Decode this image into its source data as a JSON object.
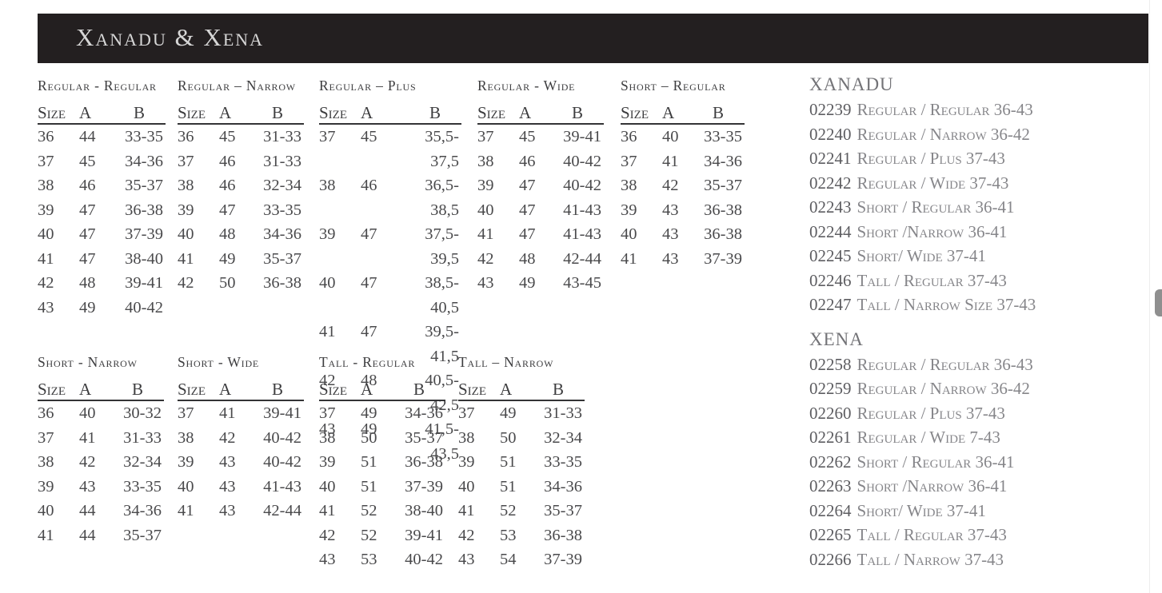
{
  "header": {
    "title": "Xanadu & Xena"
  },
  "colors": {
    "header_bg": "#231f20",
    "header_fg": "#d6d6d6",
    "title": "#3d3d3f",
    "text": "#4a4a4c",
    "rule": "#343436",
    "heading": "#737377",
    "code": "#5d5d61",
    "desc": "#86868a",
    "scrollbar": "#8f8f8f",
    "page_edge": "#ededed"
  },
  "table_columns": [
    "Size",
    "A",
    "B"
  ],
  "size_tables": [
    {
      "title": "Regular - Regular",
      "rows": [
        [
          "36",
          "44",
          "33-35"
        ],
        [
          "37",
          "45",
          "34-36"
        ],
        [
          "38",
          "46",
          "35-37"
        ],
        [
          "39",
          "47",
          "36-38"
        ],
        [
          "40",
          "47",
          "37-39"
        ],
        [
          "41",
          "47",
          "38-40"
        ],
        [
          "42",
          "48",
          "39-41"
        ],
        [
          "43",
          "49",
          "40-42"
        ]
      ]
    },
    {
      "title": "Regular – Narrow",
      "rows": [
        [
          "36",
          "45",
          "31-33"
        ],
        [
          "37",
          "46",
          "31-33"
        ],
        [
          "38",
          "46",
          "32-34"
        ],
        [
          "39",
          "47",
          "33-35"
        ],
        [
          "40",
          "48",
          "34-36"
        ],
        [
          "41",
          "49",
          "35-37"
        ],
        [
          "42",
          "50",
          "36-38"
        ]
      ]
    },
    {
      "title": "Regular – Plus",
      "rows": [
        [
          "37",
          "45",
          "35,5-37,5"
        ],
        [
          "38",
          "46",
          "36,5-38,5"
        ],
        [
          "39",
          "47",
          "37,5-39,5"
        ],
        [
          "40",
          "47",
          "38,5-40,5"
        ],
        [
          "41",
          "47",
          "39,5-41,5"
        ],
        [
          "42",
          "48",
          "40,5-42,5"
        ],
        [
          "43",
          "49",
          "41,5-43,5"
        ]
      ]
    },
    {
      "title": "Regular - Wide",
      "rows": [
        [
          "37",
          "45",
          "39-41"
        ],
        [
          "38",
          "46",
          "40-42"
        ],
        [
          "39",
          "47",
          "40-42"
        ],
        [
          "40",
          "47",
          "41-43"
        ],
        [
          "41",
          "47",
          "41-43"
        ],
        [
          "42",
          "48",
          "42-44"
        ],
        [
          "43",
          "49",
          "43-45"
        ]
      ]
    },
    {
      "title": "Short – Regular",
      "rows": [
        [
          "36",
          "40",
          "33-35"
        ],
        [
          "37",
          "41",
          "34-36"
        ],
        [
          "38",
          "42",
          "35-37"
        ],
        [
          "39",
          "43",
          "36-38"
        ],
        [
          "40",
          "43",
          "36-38"
        ],
        [
          "41",
          "43",
          "37-39"
        ]
      ]
    },
    {
      "title": "Short - Narrow",
      "rows": [
        [
          "36",
          "40",
          "30-32"
        ],
        [
          "37",
          "41",
          "31-33"
        ],
        [
          "38",
          "42",
          "32-34"
        ],
        [
          "39",
          "43",
          "33-35"
        ],
        [
          "40",
          "44",
          "34-36"
        ],
        [
          "41",
          "44",
          "35-37"
        ]
      ]
    },
    {
      "title": "Short - Wide",
      "rows": [
        [
          "37",
          "41",
          "39-41"
        ],
        [
          "38",
          "42",
          "40-42"
        ],
        [
          "39",
          "43",
          "40-42"
        ],
        [
          "40",
          "43",
          "41-43"
        ],
        [
          "41",
          "43",
          "42-44"
        ]
      ]
    },
    {
      "title": "Tall - Regular",
      "rows": [
        [
          "37",
          "49",
          "34-36"
        ],
        [
          "38",
          "50",
          "35-37"
        ],
        [
          "39",
          "51",
          "36-38"
        ],
        [
          "40",
          "51",
          "37-39"
        ],
        [
          "41",
          "52",
          "38-40"
        ],
        [
          "42",
          "52",
          "39-41"
        ],
        [
          "43",
          "53",
          "40-42"
        ]
      ]
    },
    {
      "title": "Tall – Narrow",
      "rows": [
        [
          "37",
          "49",
          "31-33"
        ],
        [
          "38",
          "50",
          "32-34"
        ],
        [
          "39",
          "51",
          "33-35"
        ],
        [
          "40",
          "51",
          "34-36"
        ],
        [
          "41",
          "52",
          "35-37"
        ],
        [
          "42",
          "53",
          "36-38"
        ],
        [
          "43",
          "54",
          "37-39"
        ]
      ]
    }
  ],
  "products": {
    "sections": [
      {
        "name": "XANADU",
        "items": [
          {
            "code": "02239",
            "desc": "Regular / Regular 36-43"
          },
          {
            "code": "02240",
            "desc": "Regular / Narrow 36-42"
          },
          {
            "code": "02241",
            "desc": "Regular / Plus 37-43"
          },
          {
            "code": "02242",
            "desc": "Regular / Wide 37-43"
          },
          {
            "code": "02243",
            "desc": "Short / Regular 36-41"
          },
          {
            "code": "02244",
            "desc": "Short /Narrow 36-41"
          },
          {
            "code": "02245",
            "desc": "Short/ Wide 37-41"
          },
          {
            "code": "02246",
            "desc": "Tall / Regular 37-43"
          },
          {
            "code": "02247",
            "desc": "Tall / Narrow Size 37-43"
          }
        ]
      },
      {
        "name": "XENA",
        "items": [
          {
            "code": "02258",
            "desc": "Regular / Regular 36-43"
          },
          {
            "code": "02259",
            "desc": "Regular / Narrow 36-42"
          },
          {
            "code": "02260",
            "desc": "Regular / Plus 37-43"
          },
          {
            "code": "02261",
            "desc": "Regular / Wide 7-43"
          },
          {
            "code": "02262",
            "desc": "Short / Regular 36-41"
          },
          {
            "code": "02263",
            "desc": "Short /Narrow 36-41"
          },
          {
            "code": "02264",
            "desc": "Short/ Wide 37-41"
          },
          {
            "code": "02265",
            "desc": "Tall / Regular  37-43"
          },
          {
            "code": "02266",
            "desc": "Tall / Narrow  37-43"
          }
        ]
      }
    ]
  }
}
